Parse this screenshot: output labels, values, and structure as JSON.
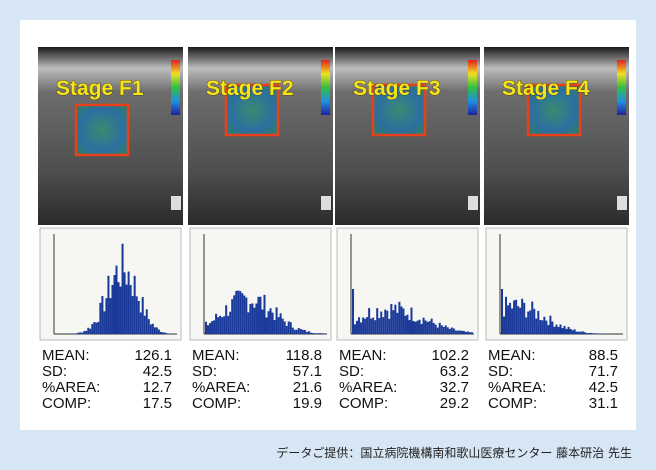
{
  "stat_labels": [
    "MEAN:",
    "SD:",
    "%AREA:",
    "COMP:"
  ],
  "panels": [
    {
      "stage": "Stage F1",
      "stats": [
        126.1,
        42.5,
        12.7,
        17.5
      ]
    },
    {
      "stage": "Stage F2",
      "stats": [
        118.8,
        57.1,
        21.6,
        19.9
      ]
    },
    {
      "stage": "Stage F3",
      "stats": [
        102.2,
        63.2,
        32.7,
        29.2
      ]
    },
    {
      "stage": "Stage F4",
      "stats": [
        88.5,
        71.7,
        42.5,
        31.1
      ]
    }
  ],
  "caption": "データご提供：国立病院機構南和歌山医療センター 藤本研治 先生"
}
